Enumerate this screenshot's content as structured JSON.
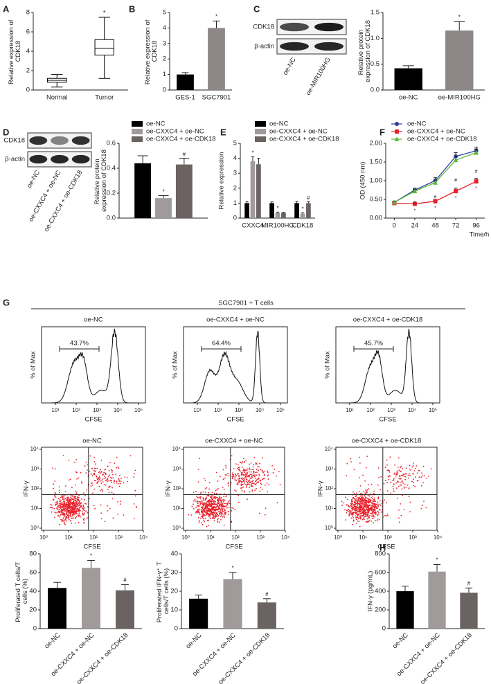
{
  "panel_labels": [
    "A",
    "B",
    "C",
    "D",
    "E",
    "F",
    "G",
    "H"
  ],
  "blots": [
    {
      "bands": [
        "CDK18",
        "β-actin"
      ],
      "lanes": [
        "oe-NC",
        "oe-MIR100HG"
      ]
    },
    {
      "bands": [
        "CDK18",
        "β-actin"
      ],
      "lanes": [
        "oe-NC",
        "oe-CXXC4 + oe-NC",
        "oe-CXXC4 + oe-CDK18"
      ]
    }
  ],
  "flow": {
    "title": "SGC7901 + T cells",
    "groups": [
      {
        "name": "oe-NC",
        "gate": "43.7%"
      },
      {
        "name": "oe-CXXC4 + oe-NC",
        "gate": "64.4%"
      },
      {
        "name": "oe-CXXC4 + oe-CDK18",
        "gate": "45.7%"
      }
    ],
    "histogram": {
      "ylabel": "% of Max",
      "xlabel": "CFSE",
      "xtick_labels": [
        "10¹",
        "10²",
        "10³",
        "10⁴",
        "10⁵"
      ]
    },
    "dotplot": {
      "ylabel": "IFN-γ",
      "xlabel": "CFSE",
      "xtick_labels": [
        "10⁰",
        "10¹",
        "10²",
        "10³",
        "10⁴"
      ],
      "ytick_labels": [
        "10⁰",
        "10¹",
        "10²",
        "10³",
        "10⁴"
      ]
    }
  },
  "chart_data": [
    {
      "type": "box",
      "ylabel": "Relative expression of CDK18",
      "categories": [
        "Normal",
        "Tumor"
      ],
      "stats": [
        {
          "min": 0.3,
          "q1": 0.8,
          "median": 1.0,
          "q3": 1.2,
          "max": 1.6
        },
        {
          "min": 1.2,
          "q1": 3.6,
          "median": 4.3,
          "q3": 5.2,
          "max": 7.5
        }
      ],
      "annotations": [
        null,
        "*"
      ],
      "color": "#000000",
      "ylim": [
        0,
        8
      ],
      "yticks": [
        0,
        2,
        4,
        6,
        8
      ]
    },
    {
      "type": "bar",
      "ylabel": "Relative expression of CDK18",
      "categories": [
        "GES-1",
        "SGC7901"
      ],
      "values": [
        1.0,
        4.0
      ],
      "errors": [
        0.12,
        0.45
      ],
      "colors": [
        "#000000",
        "#8e8787"
      ],
      "annotations": [
        null,
        "*"
      ],
      "ylim": [
        0,
        5
      ],
      "yticks": [
        0,
        1,
        2,
        3,
        4,
        5
      ]
    },
    {
      "type": "bar",
      "ylabel": "Relative protein expression of CDK18",
      "categories": [
        "oe-NC",
        "oe-MIR100HG"
      ],
      "values": [
        0.42,
        1.15
      ],
      "errors": [
        0.05,
        0.17
      ],
      "colors": [
        "#000000",
        "#8e8787"
      ],
      "annotations": [
        null,
        "*"
      ],
      "ylim": [
        0,
        1.5
      ],
      "yticks": [
        {
          "value": 0,
          "label": "0.0"
        },
        0.5,
        {
          "value": 1,
          "label": "1.0"
        },
        1.5
      ]
    },
    {
      "type": "bar",
      "ylabel": "Relative protein expression of CDK18",
      "categories": [
        null
      ],
      "series": [
        {
          "name": "oe-NC",
          "color": "#000000",
          "values": [
            0.44
          ],
          "errors": [
            0.06
          ],
          "annotations": [
            null
          ]
        },
        {
          "name": "oe-CXXC4 + oe-NC",
          "color": "#a09a9a",
          "values": [
            0.16
          ],
          "errors": [
            0.02
          ],
          "annotations": [
            "*"
          ]
        },
        {
          "name": "oe-CXXC4 + oe-CDK18",
          "color": "#6b6262",
          "values": [
            0.43
          ],
          "errors": [
            0.05
          ],
          "annotations": [
            "#"
          ]
        }
      ],
      "ylim": [
        0,
        0.6
      ],
      "yticks": [
        {
          "value": 0,
          "label": "0.0"
        },
        0.2,
        0.4,
        0.6
      ]
    },
    {
      "type": "bar",
      "ylabel": "Relative expression",
      "categories": [
        "CXXC4",
        "MIR100HG",
        "CDK18"
      ],
      "series": [
        {
          "name": "oe-NC",
          "color": "#000000",
          "values": [
            1.0,
            1.0,
            1.0
          ],
          "errors": [
            0.1,
            0.08,
            0.1
          ],
          "annotations": [
            null,
            null,
            null
          ]
        },
        {
          "name": "oe-CXXC4 + oe-NC",
          "color": "#a09a9a",
          "values": [
            3.8,
            0.35,
            0.3
          ],
          "errors": [
            0.3,
            0.05,
            0.05
          ],
          "annotations": [
            "*",
            "*",
            "*"
          ]
        },
        {
          "name": "oe-CXXC4 + oe-CDK18",
          "color": "#6b6262",
          "values": [
            3.6,
            0.35,
            1.0
          ],
          "errors": [
            0.4,
            0.04,
            0.1
          ],
          "annotations": [
            null,
            null,
            "#"
          ]
        }
      ],
      "ylim": [
        0,
        5
      ],
      "yticks": [
        0,
        1,
        2,
        3,
        4,
        5
      ]
    },
    {
      "type": "line",
      "ylabel": "OD (450 nm)",
      "xlabel": "Time/h",
      "x": [
        0,
        24,
        48,
        72,
        96
      ],
      "xlim": [
        -10,
        106
      ],
      "xticks": [
        0,
        24,
        48,
        72,
        96
      ],
      "series": [
        {
          "name": "oe-NC",
          "color": "#2a3f9a",
          "marker": "circle",
          "values": [
            0.42,
            0.75,
            1.0,
            1.65,
            1.8
          ],
          "errors": [
            0.03,
            0.05,
            0.08,
            0.1,
            0.1
          ],
          "annotations": [
            null,
            null,
            null,
            null,
            null
          ]
        },
        {
          "name": "oe-CXXC4 + oe-NC",
          "color": "#e8202a",
          "marker": "square",
          "values": [
            0.4,
            0.38,
            0.45,
            0.72,
            0.98
          ],
          "errors": [
            0.03,
            0.04,
            0.05,
            0.08,
            0.08
          ],
          "annotations": [
            null,
            "*",
            "*",
            "*",
            "*"
          ]
        },
        {
          "name": "oe-CXXC4 + oe-CDK18",
          "color": "#5cb83a",
          "marker": "triangle",
          "values": [
            0.42,
            0.72,
            0.95,
            1.55,
            1.75
          ],
          "errors": [
            0.03,
            0.05,
            0.07,
            0.1,
            0.1
          ],
          "annotations": [
            null,
            "#",
            "#",
            "#",
            "#"
          ]
        }
      ],
      "ylim": [
        0,
        2
      ],
      "yticks": [
        {
          "value": 0,
          "label": "0.00"
        },
        {
          "value": 0.5,
          "label": "0.50"
        },
        {
          "value": 1,
          "label": "1.00"
        },
        {
          "value": 1.5,
          "label": "1.50"
        },
        {
          "value": 2,
          "label": "2.00"
        }
      ]
    },
    {
      "type": "bar",
      "ylabel": "Proliferated T cells/T cells (%)",
      "categories": [
        "oe-NC",
        "oe-CXXC4 + oe-NC",
        "oe-CXXC4 + oe-CDK18"
      ],
      "values": [
        43.5,
        65,
        41
      ],
      "errors": [
        6,
        8,
        6
      ],
      "colors": [
        "#000000",
        "#a09a9a",
        "#6b6262"
      ],
      "annotations": [
        null,
        "*",
        "#"
      ],
      "ylim": [
        0,
        80
      ],
      "yticks": [
        0,
        20,
        40,
        60,
        80
      ]
    },
    {
      "type": "bar",
      "ylabel": "Proliferated IFN-γ⁺ T cells/T cells (%)",
      "categories": [
        "oe-NC",
        "oe-CXXC4 + oe-NC",
        "oe-CXXC4 + oe-CDK18"
      ],
      "values": [
        16,
        26.5,
        14
      ],
      "errors": [
        2,
        3.5,
        2
      ],
      "colors": [
        "#000000",
        "#a09a9a",
        "#6b6262"
      ],
      "annotations": [
        null,
        "*",
        "#"
      ],
      "ylim": [
        0,
        40
      ],
      "yticks": [
        0,
        10,
        20,
        30,
        40
      ]
    },
    {
      "type": "bar",
      "ylabel": "IFN-γ (pg/mL)",
      "categories": [
        "oe-NC",
        "oe-CXXC4 + oe-NC",
        "oe-CXXC4 + oe-CDK18"
      ],
      "values": [
        400,
        610,
        385
      ],
      "errors": [
        55,
        75,
        50
      ],
      "colors": [
        "#000000",
        "#a09a9a",
        "#6b6262"
      ],
      "annotations": [
        null,
        "*",
        "#"
      ],
      "ylim": [
        0,
        800
      ],
      "yticks": [
        0,
        200,
        400,
        600,
        800
      ]
    }
  ]
}
